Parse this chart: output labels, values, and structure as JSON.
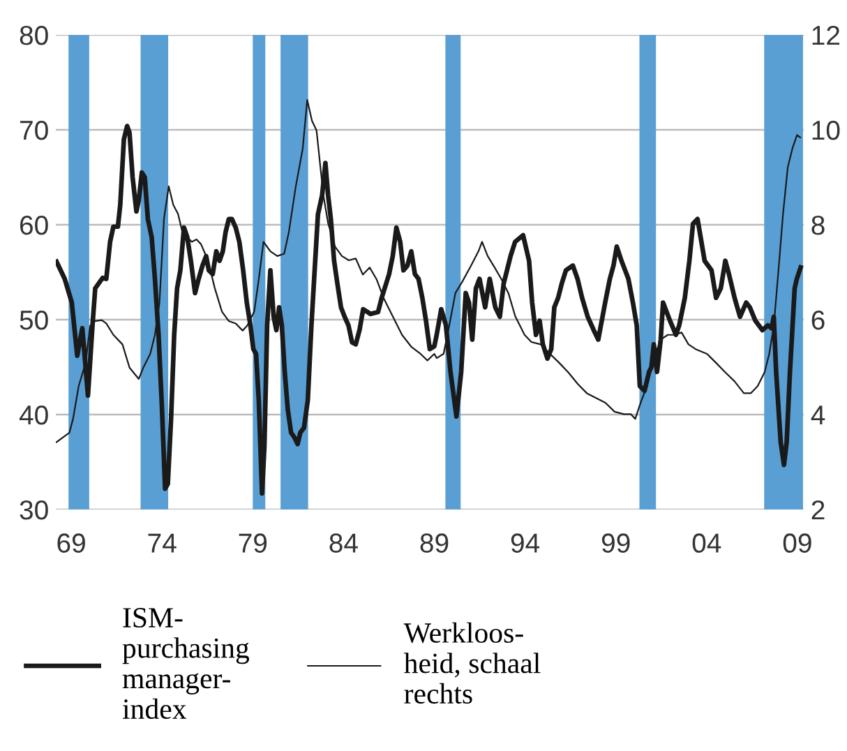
{
  "chart_data": {
    "type": "line",
    "xlim": [
      1968.15,
      2009.35
    ],
    "xticks": [
      {
        "value": 1969,
        "label": "69"
      },
      {
        "value": 1974,
        "label": "74"
      },
      {
        "value": 1979,
        "label": "79"
      },
      {
        "value": 1984,
        "label": "84"
      },
      {
        "value": 1989,
        "label": "89"
      },
      {
        "value": 1994,
        "label": "94"
      },
      {
        "value": 1999,
        "label": "99"
      },
      {
        "value": 2004,
        "label": "04"
      },
      {
        "value": 2009,
        "label": "09"
      }
    ],
    "ylim": [
      30,
      80
    ],
    "yticks": [
      30,
      40,
      50,
      60,
      70,
      80
    ],
    "y2lim": [
      2,
      12
    ],
    "y2ticks": [
      2,
      4,
      6,
      8,
      10,
      12
    ],
    "grid": "y",
    "legend": "bottom",
    "marker": "none",
    "line_style": "solid",
    "bands": [
      {
        "axis": "x",
        "from": 1968.85,
        "to": 1969.99,
        "color": "#5a9fd4"
      },
      {
        "axis": "x",
        "from": 1972.82,
        "to": 1974.34,
        "color": "#5a9fd4"
      },
      {
        "axis": "x",
        "from": 1979.0,
        "to": 1979.69,
        "color": "#5a9fd4"
      },
      {
        "axis": "x",
        "from": 1980.53,
        "to": 1982.05,
        "color": "#5a9fd4"
      },
      {
        "axis": "x",
        "from": 1989.61,
        "to": 1990.45,
        "color": "#5a9fd4"
      },
      {
        "axis": "x",
        "from": 2000.3,
        "to": 2001.21,
        "color": "#5a9fd4"
      },
      {
        "axis": "x",
        "from": 2007.17,
        "to": 2009.31,
        "color": "#5a9fd4"
      }
    ],
    "series": [
      {
        "name": "ISM-\npurchasing\nmanager-\nindex",
        "color": "#1a1a1a",
        "axis": "y",
        "x": [
          1968.19,
          1968.64,
          1969.03,
          1969.33,
          1969.61,
          1969.92,
          1970.17,
          1970.32,
          1970.73,
          1970.93,
          1971.14,
          1971.32,
          1971.57,
          1971.7,
          1971.9,
          1972.08,
          1972.21,
          1972.38,
          1972.59,
          1972.72,
          1972.89,
          1973.05,
          1973.22,
          1973.43,
          1973.61,
          1973.81,
          1973.99,
          1974.17,
          1974.32,
          1974.5,
          1974.67,
          1974.83,
          1975.01,
          1975.21,
          1975.39,
          1975.59,
          1975.82,
          1976.02,
          1976.23,
          1976.43,
          1976.58,
          1976.79,
          1976.99,
          1977.17,
          1977.35,
          1977.5,
          1977.68,
          1977.85,
          1978.06,
          1978.26,
          1978.47,
          1978.67,
          1978.87,
          1979.03,
          1979.18,
          1979.33,
          1979.51,
          1979.64,
          1979.79,
          1979.97,
          1980.15,
          1980.3,
          1980.45,
          1980.6,
          1980.76,
          1980.93,
          1981.11,
          1981.29,
          1981.47,
          1981.62,
          1981.82,
          1982.03,
          1982.23,
          1982.38,
          1982.59,
          1982.82,
          1983.0,
          1983.15,
          1983.3,
          1983.48,
          1983.66,
          1983.86,
          1984.06,
          1984.27,
          1984.47,
          1984.67,
          1984.88,
          1985.08,
          1985.49,
          1985.9,
          1986.1,
          1986.51,
          1986.71,
          1986.91,
          1987.12,
          1987.3,
          1987.52,
          1987.73,
          1987.93,
          1988.13,
          1988.34,
          1988.54,
          1988.75,
          1989.0,
          1989.13,
          1989.38,
          1989.64,
          1989.89,
          1990.22,
          1990.48,
          1990.73,
          1990.91,
          1991.09,
          1991.29,
          1991.49,
          1991.8,
          1992.05,
          1992.36,
          1992.61,
          1992.82,
          1993.2,
          1993.45,
          1993.89,
          1994.22,
          1994.39,
          1994.6,
          1994.8,
          1994.98,
          1995.23,
          1995.44,
          1995.61,
          1995.82,
          1996.02,
          1996.25,
          1996.63,
          1996.89,
          1997.14,
          1997.45,
          1997.78,
          1998.03,
          1998.41,
          1998.67,
          1998.87,
          1999.05,
          1999.31,
          1999.69,
          1999.94,
          2000.15,
          2000.32,
          2000.58,
          2000.83,
          2000.96,
          2001.09,
          2001.27,
          2001.47,
          2001.6,
          2001.98,
          2002.31,
          2002.49,
          2002.8,
          2003.05,
          2003.25,
          2003.5,
          2003.89,
          2004.27,
          2004.52,
          2004.78,
          2005.03,
          2005.23,
          2005.54,
          2005.84,
          2006.18,
          2006.38,
          2006.68,
          2007.07,
          2007.37,
          2007.58,
          2007.7,
          2007.83,
          2008.08,
          2008.26,
          2008.41,
          2008.59,
          2008.85,
          2008.97,
          2009.18
        ],
        "values": [
          56.1,
          54.3,
          51.8,
          46.2,
          49.1,
          42.0,
          49.4,
          53.3,
          54.4,
          54.3,
          58.2,
          59.8,
          59.8,
          62.1,
          69.0,
          70.4,
          69.7,
          65.0,
          61.4,
          62.6,
          65.5,
          65.0,
          60.6,
          58.7,
          54.3,
          48.4,
          41.0,
          32.2,
          32.7,
          39.6,
          48.4,
          53.3,
          55.2,
          59.7,
          58.7,
          56.2,
          52.8,
          54.3,
          55.7,
          56.7,
          55.2,
          54.8,
          57.2,
          56.2,
          57.2,
          59.2,
          60.6,
          60.6,
          59.7,
          58.2,
          55.2,
          51.8,
          49.4,
          46.9,
          46.4,
          41.5,
          31.7,
          36.6,
          49.4,
          55.2,
          50.3,
          48.9,
          51.3,
          49.4,
          44.5,
          40.5,
          38.1,
          37.6,
          36.9,
          38.1,
          38.6,
          41.5,
          49.4,
          54.3,
          61.1,
          63.1,
          66.5,
          63.1,
          60.6,
          56.2,
          53.8,
          51.3,
          50.3,
          49.4,
          47.6,
          47.4,
          48.9,
          51.1,
          50.6,
          50.8,
          52.3,
          54.8,
          56.7,
          59.7,
          58.2,
          55.2,
          55.7,
          57.2,
          54.8,
          54.3,
          52.3,
          49.9,
          46.9,
          47.2,
          48.4,
          51.1,
          49.4,
          44.5,
          39.8,
          44.5,
          52.8,
          51.8,
          47.9,
          53.3,
          54.3,
          51.3,
          54.3,
          51.3,
          50.3,
          53.8,
          56.7,
          58.2,
          58.9,
          56.2,
          51.8,
          48.4,
          49.9,
          47.4,
          45.9,
          46.9,
          51.3,
          52.3,
          53.8,
          55.2,
          55.7,
          54.3,
          52.3,
          50.3,
          48.9,
          47.9,
          51.8,
          54.3,
          55.7,
          57.7,
          56.2,
          54.3,
          51.8,
          49.4,
          43.0,
          42.5,
          44.5,
          45.0,
          47.4,
          44.5,
          47.9,
          51.8,
          49.9,
          48.4,
          49.4,
          52.3,
          56.2,
          60.1,
          60.6,
          56.2,
          55.2,
          52.3,
          53.3,
          56.2,
          54.8,
          52.3,
          50.3,
          51.8,
          51.3,
          49.9,
          48.9,
          49.4,
          49.1,
          50.3,
          44.5,
          37.1,
          34.7,
          37.1,
          44.5,
          53.3,
          54.3,
          55.5
        ]
      },
      {
        "name": "Werkloos-\nheid, schaal\nrechts",
        "color": "#1a1a1a",
        "axis": "y2",
        "x": [
          1968.19,
          1968.9,
          1969.1,
          1969.41,
          1969.79,
          1970.04,
          1970.3,
          1970.68,
          1970.93,
          1971.32,
          1971.82,
          1972.21,
          1972.72,
          1972.97,
          1973.35,
          1973.61,
          1973.86,
          1974.11,
          1974.37,
          1974.62,
          1974.88,
          1975.13,
          1975.39,
          1975.64,
          1975.9,
          1976.15,
          1976.53,
          1976.91,
          1977.3,
          1977.68,
          1978.06,
          1978.44,
          1978.69,
          1979.08,
          1979.33,
          1979.59,
          1979.97,
          1980.35,
          1980.73,
          1980.98,
          1981.37,
          1981.75,
          1982.0,
          1982.26,
          1982.51,
          1982.89,
          1983.15,
          1983.53,
          1983.91,
          1984.29,
          1984.67,
          1985.06,
          1985.44,
          1985.82,
          1986.2,
          1986.71,
          1987.22,
          1987.73,
          1988.24,
          1988.62,
          1989.0,
          1989.13,
          1989.51,
          1989.82,
          1990.16,
          1990.54,
          1991.04,
          1991.43,
          1991.63,
          1991.94,
          1992.32,
          1992.7,
          1993.08,
          1993.46,
          1993.97,
          1994.35,
          1994.86,
          1995.37,
          1995.88,
          1996.38,
          1996.89,
          1997.4,
          1997.91,
          1998.42,
          1998.93,
          1999.44,
          1999.82,
          2000.07,
          2000.33,
          2000.71,
          2001.09,
          2001.47,
          2001.86,
          2002.24,
          2002.62,
          2003.0,
          2003.39,
          2004.02,
          2004.52,
          2005.03,
          2005.54,
          2006.05,
          2006.43,
          2006.81,
          2007.19,
          2007.45,
          2007.7,
          2007.96,
          2008.21,
          2008.47,
          2008.72,
          2008.98,
          2009.16
        ],
        "values": [
          3.42,
          3.62,
          3.91,
          4.6,
          5.09,
          5.87,
          5.97,
          5.99,
          5.92,
          5.68,
          5.48,
          4.99,
          4.75,
          4.99,
          5.28,
          5.68,
          6.36,
          8.13,
          8.81,
          8.42,
          8.23,
          7.83,
          7.74,
          7.64,
          7.69,
          7.59,
          7.25,
          6.66,
          6.17,
          5.97,
          5.92,
          5.77,
          5.87,
          6.17,
          6.85,
          7.64,
          7.44,
          7.34,
          7.39,
          7.83,
          8.81,
          9.6,
          10.63,
          10.19,
          9.99,
          8.62,
          8.03,
          7.54,
          7.34,
          7.25,
          7.29,
          6.95,
          7.1,
          6.85,
          6.46,
          6.07,
          5.68,
          5.43,
          5.28,
          5.14,
          5.28,
          5.19,
          5.28,
          5.87,
          6.56,
          6.8,
          7.15,
          7.44,
          7.64,
          7.34,
          7.1,
          6.85,
          6.56,
          6.07,
          5.68,
          5.53,
          5.48,
          5.28,
          5.09,
          4.89,
          4.65,
          4.45,
          4.35,
          4.25,
          4.06,
          4.01,
          4.01,
          3.91,
          4.21,
          4.6,
          5.19,
          5.58,
          5.68,
          5.68,
          5.73,
          5.48,
          5.38,
          5.28,
          5.09,
          4.89,
          4.7,
          4.45,
          4.45,
          4.6,
          4.89,
          5.28,
          5.87,
          7.05,
          8.23,
          9.21,
          9.6,
          9.89,
          9.84
        ]
      }
    ]
  }
}
